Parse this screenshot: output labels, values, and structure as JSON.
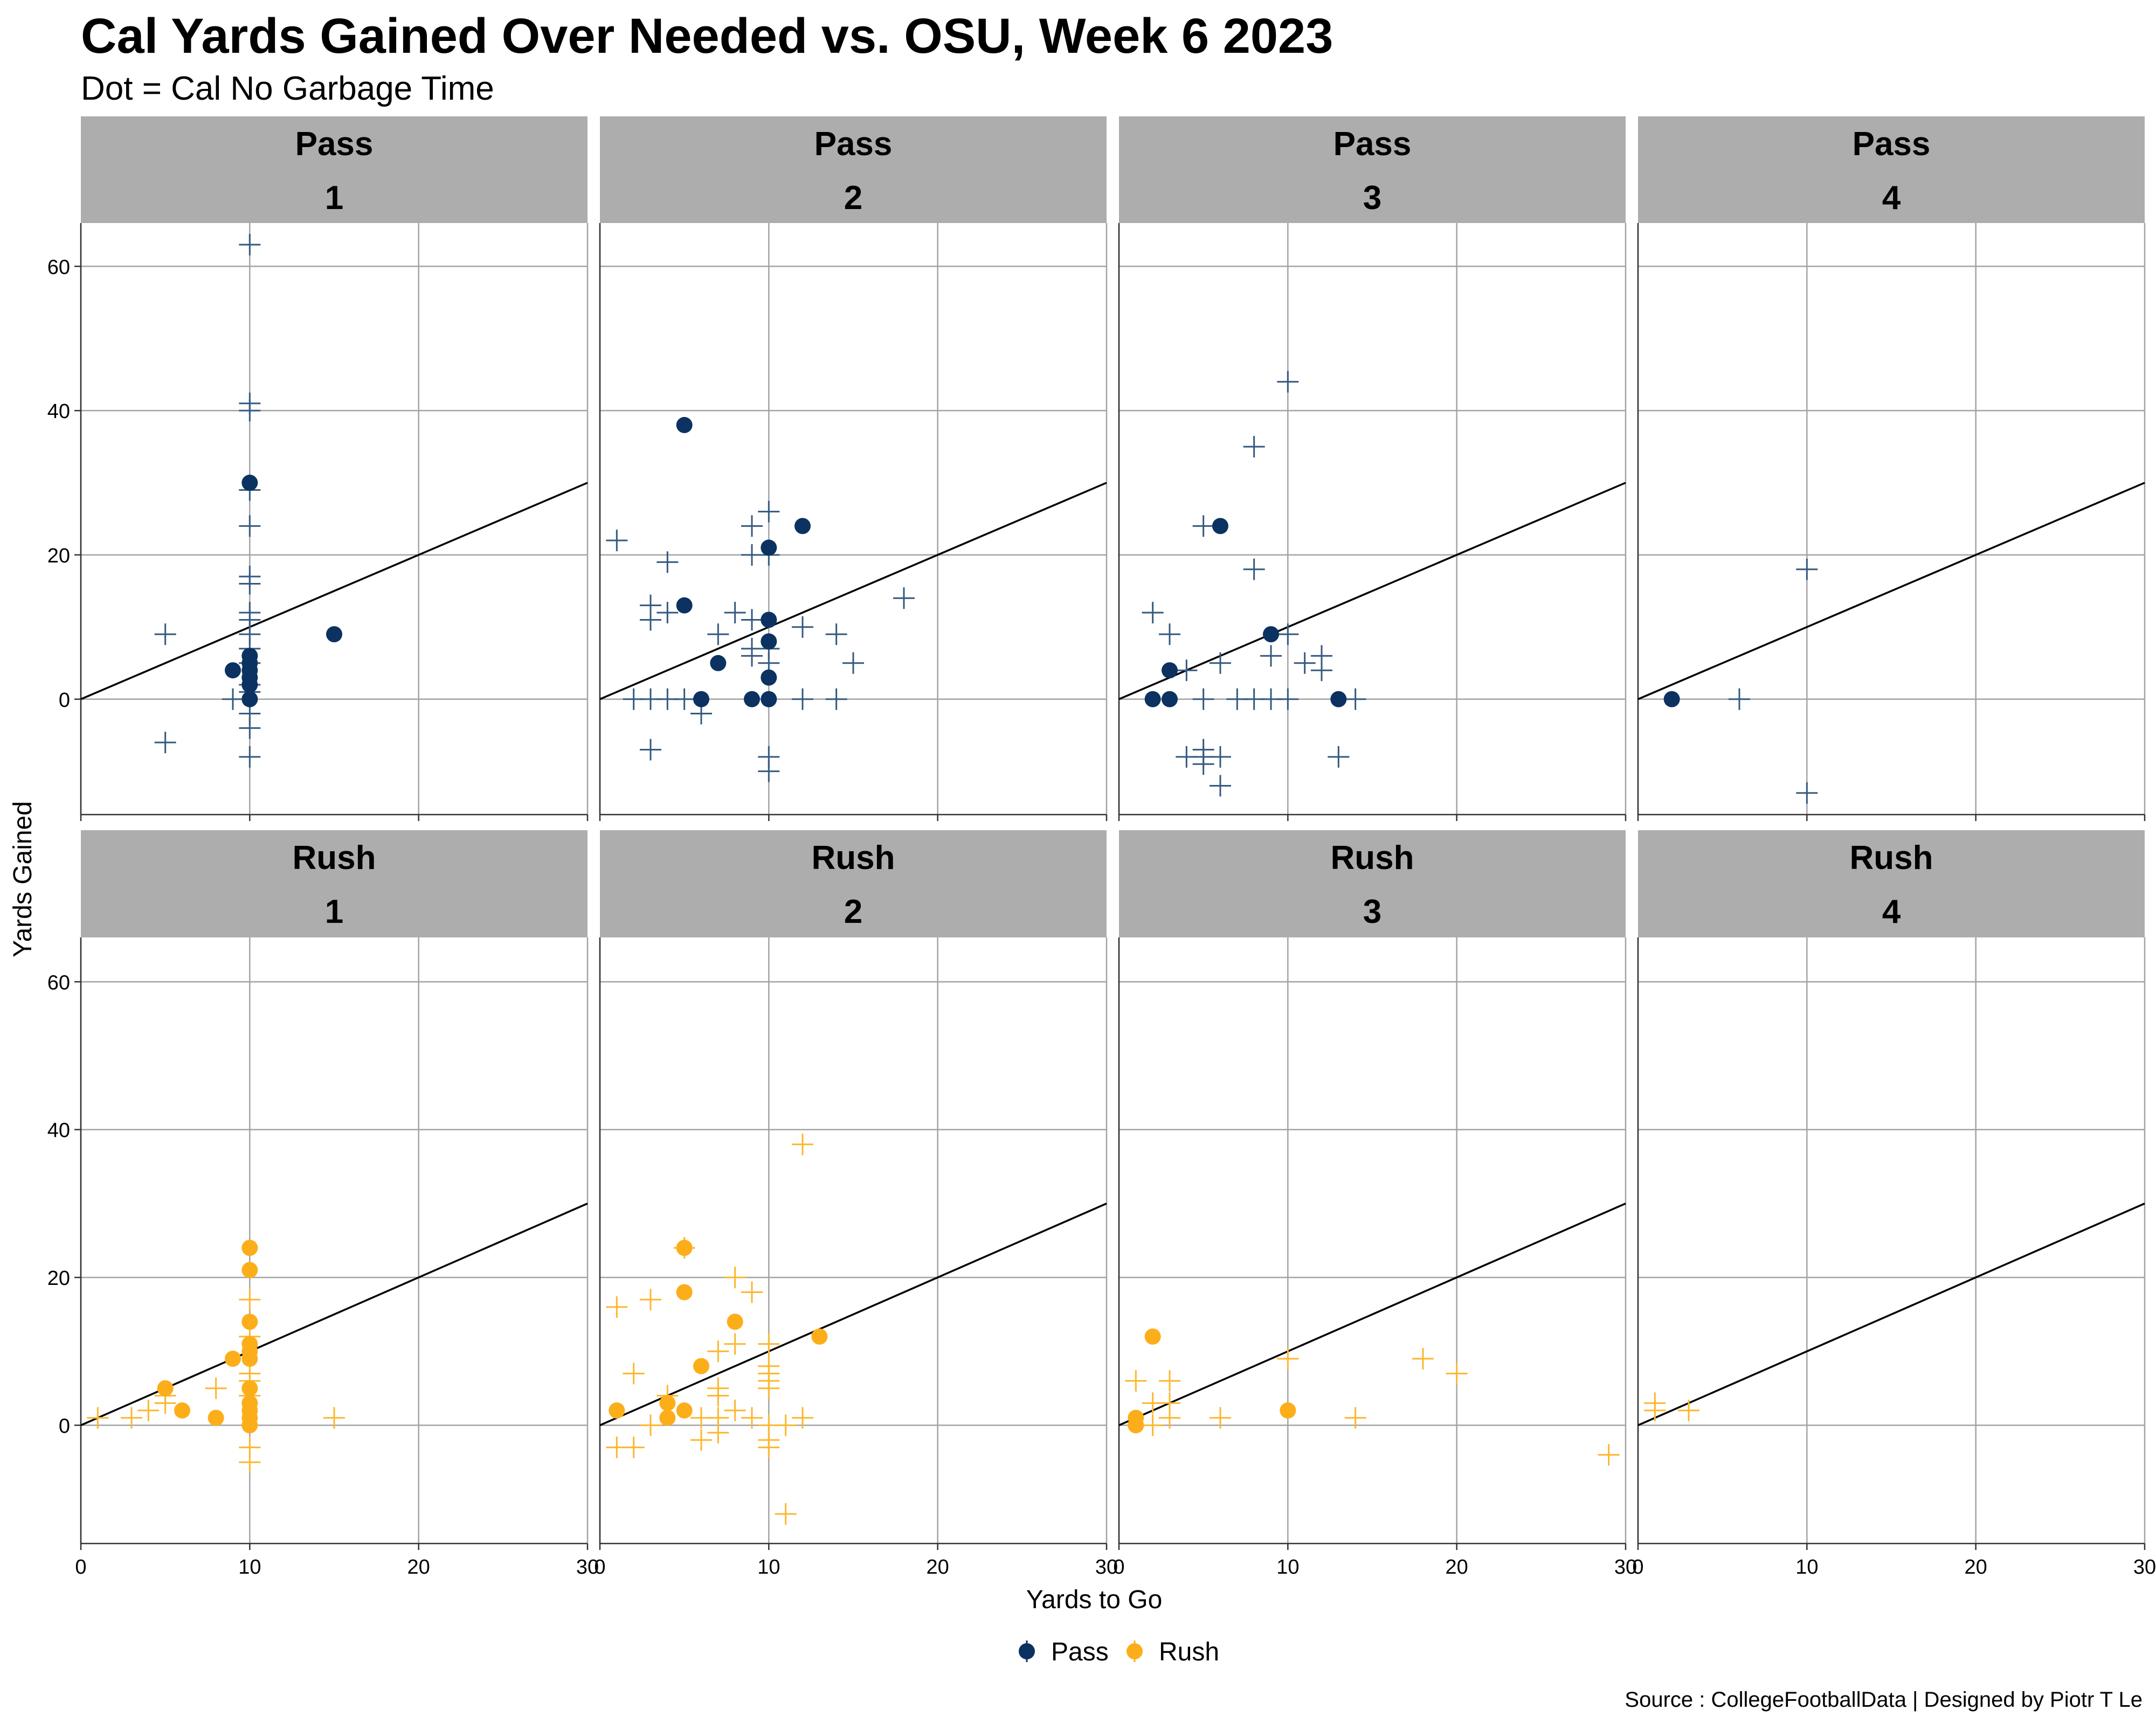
{
  "chart_data": {
    "type": "scatter",
    "title": "Cal Yards Gained Over Needed vs. OSU, Week 6 2023",
    "subtitle": "Dot = Cal No Garbage Time",
    "xlabel": "Yards to Go",
    "ylabel": "Yards Gained",
    "caption": "Source : CollegeFootballData | Designed by Piotr T Le",
    "xlim": [
      0,
      30
    ],
    "ylim": [
      -16,
      66
    ],
    "x_ticks": [
      0,
      10,
      20,
      30
    ],
    "y_ticks": [
      0,
      20,
      40,
      60
    ],
    "reference_line": {
      "slope": 1,
      "intercept": 0
    },
    "grid": true,
    "legend": {
      "position": "bottom",
      "items": [
        {
          "label": "Pass",
          "color": "#0b3260"
        },
        {
          "label": "Rush",
          "color": "#fcae1a"
        }
      ]
    },
    "colors": {
      "Pass": "#0b3260",
      "Pass_cross": "#35597f",
      "Rush": "#fcae1a",
      "Rush_cross": "#fcb72e",
      "strip": "#adadad",
      "grid": "#a3a3a3"
    },
    "facets": [
      {
        "play_type": "Pass",
        "down": "1",
        "dots": [
          [
            9,
            4
          ],
          [
            10,
            30
          ],
          [
            10,
            6
          ],
          [
            10,
            5
          ],
          [
            10,
            4
          ],
          [
            10,
            3
          ],
          [
            10,
            2
          ],
          [
            10,
            0
          ],
          [
            15,
            9
          ]
        ],
        "crosses": [
          [
            10,
            63
          ],
          [
            10,
            41
          ],
          [
            10,
            40
          ],
          [
            10,
            29
          ],
          [
            10,
            24
          ],
          [
            10,
            17
          ],
          [
            10,
            16
          ],
          [
            10,
            12
          ],
          [
            10,
            11
          ],
          [
            10,
            9
          ],
          [
            10,
            7
          ],
          [
            10,
            5
          ],
          [
            10,
            2
          ],
          [
            10,
            1
          ],
          [
            10,
            -2
          ],
          [
            10,
            -4
          ],
          [
            10,
            -8
          ],
          [
            5,
            9
          ],
          [
            5,
            -6
          ],
          [
            9,
            0
          ]
        ]
      },
      {
        "play_type": "Pass",
        "down": "2",
        "dots": [
          [
            5,
            38
          ],
          [
            5,
            13
          ],
          [
            6,
            0
          ],
          [
            7,
            5
          ],
          [
            9,
            0
          ],
          [
            10,
            21
          ],
          [
            10,
            11
          ],
          [
            10,
            8
          ],
          [
            10,
            3
          ],
          [
            10,
            0
          ],
          [
            12,
            24
          ]
        ],
        "crosses": [
          [
            1,
            22
          ],
          [
            2,
            0
          ],
          [
            3,
            13
          ],
          [
            3,
            11
          ],
          [
            3,
            0
          ],
          [
            3,
            -7
          ],
          [
            4,
            19
          ],
          [
            4,
            12
          ],
          [
            4,
            0
          ],
          [
            5,
            0
          ],
          [
            6,
            -2
          ],
          [
            7,
            9
          ],
          [
            8,
            12
          ],
          [
            9,
            24
          ],
          [
            9,
            20
          ],
          [
            9,
            11
          ],
          [
            9,
            7
          ],
          [
            9,
            6
          ],
          [
            10,
            26
          ],
          [
            10,
            20
          ],
          [
            10,
            7
          ],
          [
            10,
            5
          ],
          [
            10,
            -8
          ],
          [
            10,
            -10
          ],
          [
            12,
            10
          ],
          [
            12,
            0
          ],
          [
            14,
            9
          ],
          [
            14,
            0
          ],
          [
            15,
            5
          ],
          [
            18,
            14
          ]
        ]
      },
      {
        "play_type": "Pass",
        "down": "3",
        "dots": [
          [
            2,
            0
          ],
          [
            3,
            4
          ],
          [
            3,
            0
          ],
          [
            6,
            24
          ],
          [
            9,
            9
          ],
          [
            13,
            0
          ]
        ],
        "crosses": [
          [
            2,
            12
          ],
          [
            3,
            9
          ],
          [
            4,
            4
          ],
          [
            4,
            -8
          ],
          [
            5,
            24
          ],
          [
            5,
            0
          ],
          [
            5,
            -7
          ],
          [
            5,
            -8
          ],
          [
            5,
            -9
          ],
          [
            6,
            5
          ],
          [
            6,
            -8
          ],
          [
            6,
            -12
          ],
          [
            7,
            0
          ],
          [
            8,
            35
          ],
          [
            8,
            18
          ],
          [
            8,
            0
          ],
          [
            9,
            6
          ],
          [
            9,
            0
          ],
          [
            10,
            44
          ],
          [
            10,
            9
          ],
          [
            10,
            0
          ],
          [
            11,
            5
          ],
          [
            12,
            6
          ],
          [
            12,
            4
          ],
          [
            13,
            -8
          ],
          [
            14,
            0
          ]
        ]
      },
      {
        "play_type": "Pass",
        "down": "4",
        "dots": [
          [
            2,
            0
          ]
        ],
        "crosses": [
          [
            6,
            0
          ],
          [
            10,
            18
          ],
          [
            10,
            -13
          ]
        ]
      },
      {
        "play_type": "Rush",
        "down": "1",
        "dots": [
          [
            5,
            5
          ],
          [
            6,
            2
          ],
          [
            8,
            1
          ],
          [
            9,
            9
          ],
          [
            10,
            24
          ],
          [
            10,
            21
          ],
          [
            10,
            14
          ],
          [
            10,
            11
          ],
          [
            10,
            10
          ],
          [
            10,
            9
          ],
          [
            10,
            5
          ],
          [
            10,
            3
          ],
          [
            10,
            2
          ],
          [
            10,
            1
          ],
          [
            10,
            0
          ]
        ],
        "crosses": [
          [
            1,
            1
          ],
          [
            3,
            1
          ],
          [
            4,
            2
          ],
          [
            5,
            4
          ],
          [
            5,
            3
          ],
          [
            8,
            5
          ],
          [
            10,
            17
          ],
          [
            10,
            12
          ],
          [
            10,
            7
          ],
          [
            10,
            6
          ],
          [
            10,
            4
          ],
          [
            10,
            -3
          ],
          [
            10,
            -5
          ],
          [
            15,
            1
          ]
        ]
      },
      {
        "play_type": "Rush",
        "down": "2",
        "dots": [
          [
            1,
            2
          ],
          [
            4,
            3
          ],
          [
            4,
            1
          ],
          [
            5,
            24
          ],
          [
            5,
            18
          ],
          [
            5,
            2
          ],
          [
            6,
            8
          ],
          [
            8,
            14
          ],
          [
            13,
            12
          ]
        ],
        "crosses": [
          [
            1,
            16
          ],
          [
            1,
            -3
          ],
          [
            2,
            7
          ],
          [
            2,
            -3
          ],
          [
            3,
            17
          ],
          [
            3,
            0
          ],
          [
            4,
            4
          ],
          [
            5,
            24
          ],
          [
            6,
            1
          ],
          [
            6,
            -2
          ],
          [
            7,
            10
          ],
          [
            7,
            5
          ],
          [
            7,
            4
          ],
          [
            7,
            1
          ],
          [
            7,
            -1
          ],
          [
            8,
            20
          ],
          [
            8,
            11
          ],
          [
            8,
            2
          ],
          [
            9,
            18
          ],
          [
            9,
            1
          ],
          [
            10,
            11
          ],
          [
            10,
            8
          ],
          [
            10,
            7
          ],
          [
            10,
            6
          ],
          [
            10,
            5
          ],
          [
            10,
            0
          ],
          [
            10,
            -2
          ],
          [
            10,
            -3
          ],
          [
            11,
            0
          ],
          [
            11,
            -12
          ],
          [
            12,
            38
          ],
          [
            12,
            1
          ]
        ]
      },
      {
        "play_type": "Rush",
        "down": "3",
        "dots": [
          [
            1,
            1
          ],
          [
            1,
            0
          ],
          [
            2,
            12
          ],
          [
            10,
            2
          ]
        ],
        "crosses": [
          [
            1,
            6
          ],
          [
            2,
            3
          ],
          [
            2,
            0
          ],
          [
            3,
            6
          ],
          [
            3,
            3
          ],
          [
            3,
            1
          ],
          [
            6,
            1
          ],
          [
            10,
            9
          ],
          [
            14,
            1
          ],
          [
            18,
            9
          ],
          [
            20,
            7
          ],
          [
            29,
            -4
          ]
        ]
      },
      {
        "play_type": "Rush",
        "down": "4",
        "dots": [],
        "crosses": [
          [
            1,
            3
          ],
          [
            1,
            2
          ],
          [
            3,
            2
          ]
        ]
      }
    ]
  }
}
